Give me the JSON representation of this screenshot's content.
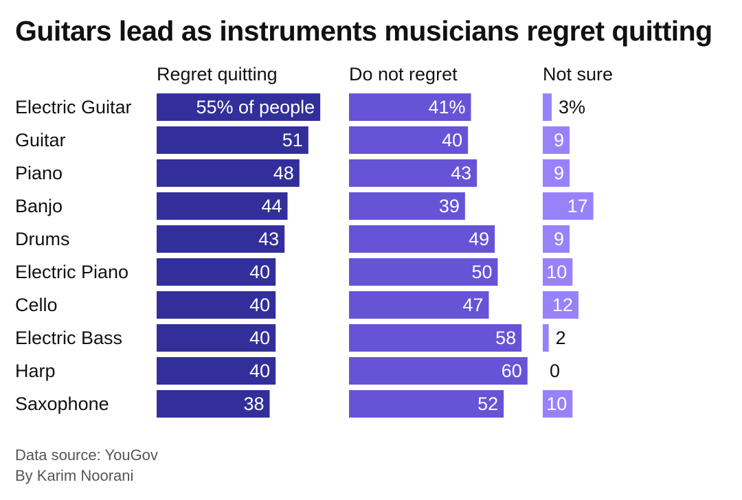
{
  "title": "Guitars lead as instruments musicians regret quitting",
  "footer": {
    "source": "Data source: YouGov",
    "byline": "By Karim Noorani"
  },
  "colors": {
    "regret": "#322f9b",
    "not_regret": "#6753d6",
    "not_sure": "#9782fa",
    "text": "#111111"
  },
  "chart_data": {
    "type": "bar",
    "categories": [
      "Electric Guitar",
      "Guitar",
      "Piano",
      "Banjo",
      "Drums",
      "Electric Piano",
      "Cello",
      "Electric Bass",
      "Harp",
      "Saxophone"
    ],
    "series": [
      {
        "name": "Regret quitting",
        "values": [
          55,
          51,
          48,
          44,
          43,
          40,
          40,
          40,
          40,
          38
        ],
        "first_label": "55% of people"
      },
      {
        "name": "Do not regret",
        "values": [
          41,
          40,
          43,
          39,
          49,
          50,
          47,
          58,
          60,
          52
        ],
        "first_label": "41%"
      },
      {
        "name": "Not sure",
        "values": [
          3,
          9,
          9,
          17,
          9,
          10,
          12,
          2,
          0,
          10
        ],
        "first_label": "3%"
      }
    ],
    "unit": "%"
  }
}
